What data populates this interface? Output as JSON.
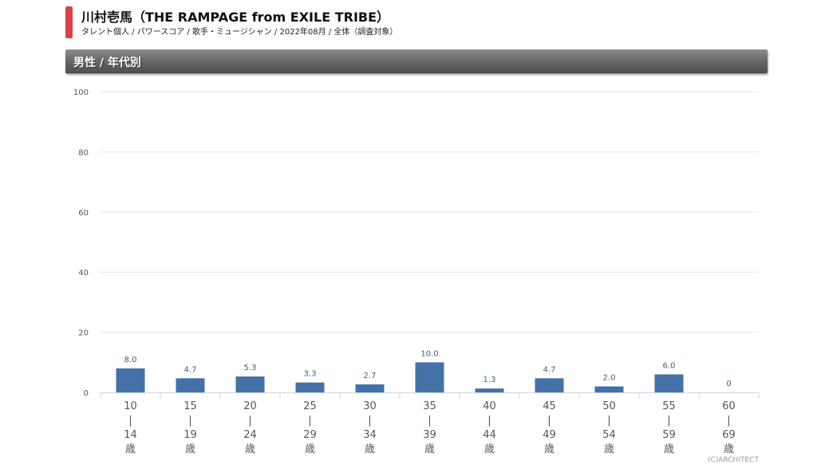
{
  "header": {
    "title": "川村壱馬（THE RAMPAGE from EXILE TRIBE）",
    "subtitle": "タレント個人 / パワースコア / 歌手・ミュージシャン / 2022年08月 / 全体（調査対象）"
  },
  "section": {
    "label": "男性 / 年代別"
  },
  "chart_data": {
    "type": "bar",
    "title": "",
    "xlabel": "",
    "ylabel": "",
    "ylim": [
      0,
      100
    ],
    "yticks": [
      0,
      20,
      40,
      60,
      80,
      100
    ],
    "grid": true,
    "categories": [
      [
        "10",
        "|",
        "14",
        "歳"
      ],
      [
        "15",
        "|",
        "19",
        "歳"
      ],
      [
        "20",
        "|",
        "24",
        "歳"
      ],
      [
        "25",
        "|",
        "29",
        "歳"
      ],
      [
        "30",
        "|",
        "34",
        "歳"
      ],
      [
        "35",
        "|",
        "39",
        "歳"
      ],
      [
        "40",
        "|",
        "44",
        "歳"
      ],
      [
        "45",
        "|",
        "49",
        "歳"
      ],
      [
        "50",
        "|",
        "54",
        "歳"
      ],
      [
        "55",
        "|",
        "59",
        "歳"
      ],
      [
        "60",
        "|",
        "69",
        "歳"
      ]
    ],
    "values": [
      8.0,
      4.7,
      5.3,
      3.3,
      2.7,
      10.0,
      1.3,
      4.7,
      2.0,
      6.0,
      0
    ],
    "data_labels": [
      "8.0",
      "4.7",
      "5.3",
      "3.3",
      "2.7",
      "10.0",
      "1.3",
      "4.7",
      "2.0",
      "6.0",
      "0"
    ],
    "bar_color": "#4472a8",
    "label_color": "#3f5f86"
  },
  "footer": {
    "credit": "(C)ARCHITECT"
  }
}
